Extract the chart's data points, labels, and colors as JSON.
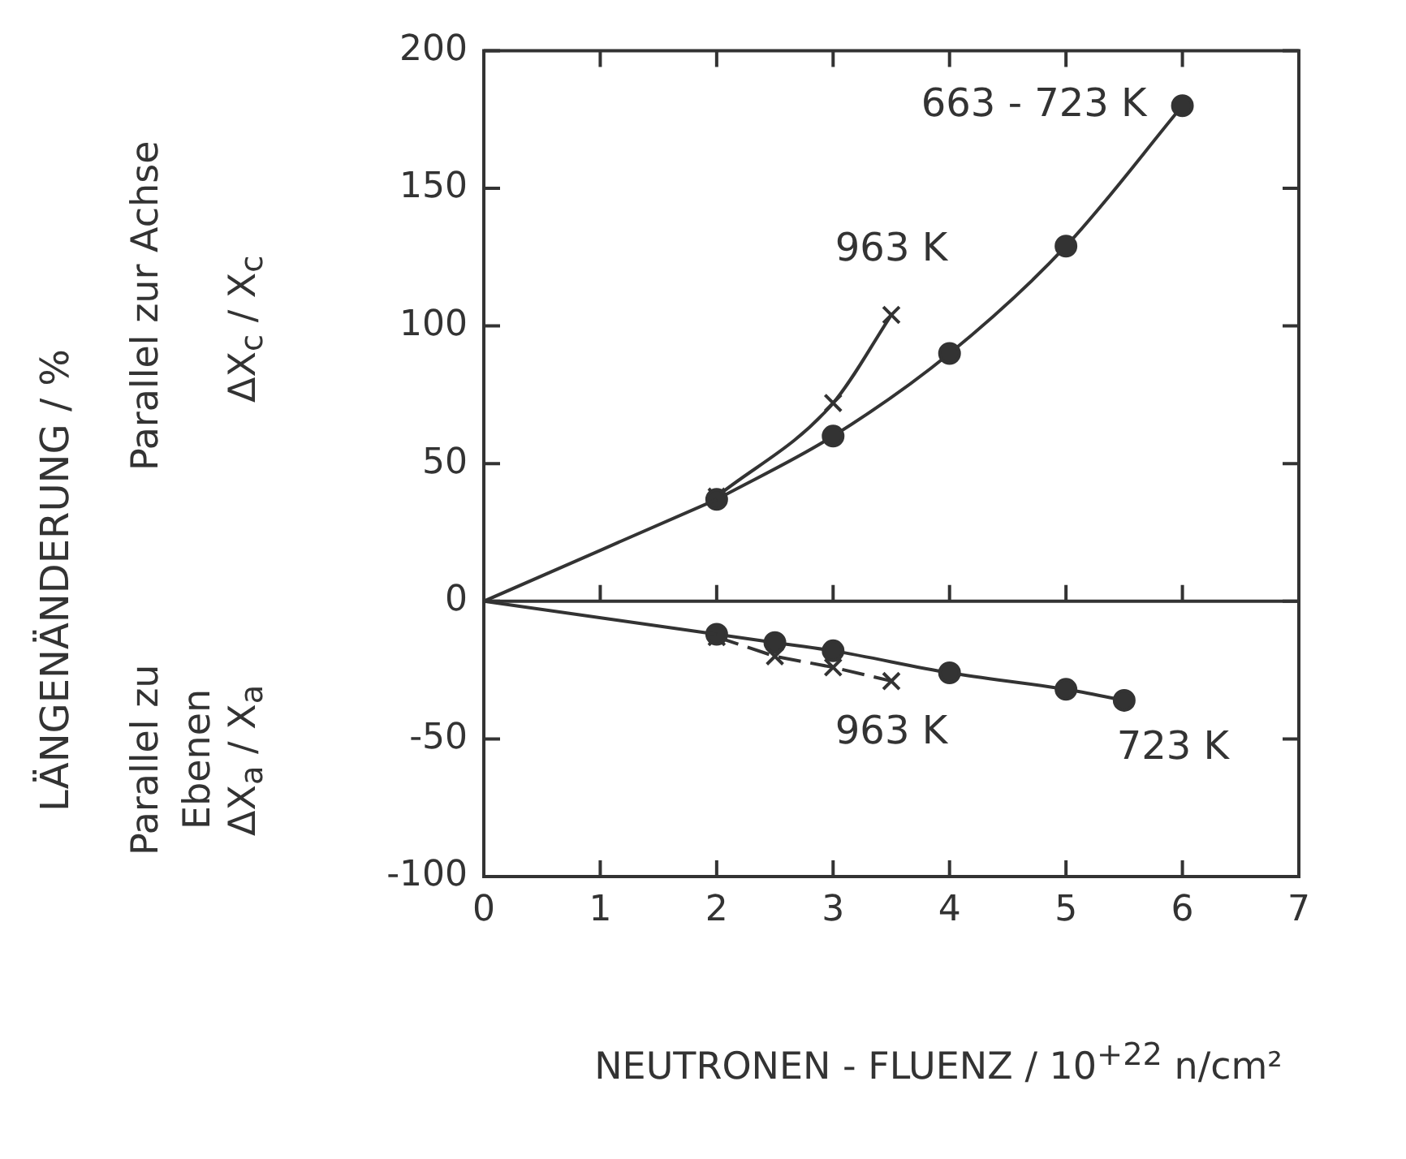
{
  "chart_data": {
    "type": "line",
    "xlabel": "NEUTRONEN - FLUENZ / 10$^{+22}$ n/cm²",
    "xlim": [
      0,
      7
    ],
    "xticks": [
      0,
      1,
      2,
      3,
      4,
      5,
      6,
      7
    ],
    "ylim": [
      -100,
      200
    ],
    "yticks": [
      -100,
      -50,
      0,
      50,
      100,
      150,
      200
    ],
    "grid": false,
    "ref_lines": [
      {
        "axis": "y",
        "value": 0,
        "color": "#333333"
      }
    ],
    "series": [
      {
        "x": [
          0,
          2
        ],
        "values": [
          0,
          37
        ],
        "color": "#333333"
      },
      {
        "name": "663 - 723 K",
        "x": [
          2,
          3,
          4,
          5,
          6
        ],
        "values": [
          37,
          60,
          90,
          129,
          180
        ],
        "color": "#333333",
        "marker": "circle"
      },
      {
        "name": "963 K",
        "x": [
          2,
          3,
          3.5
        ],
        "values": [
          38,
          72,
          104
        ],
        "color": "#333333",
        "marker": "cross"
      },
      {
        "x": [
          0,
          2
        ],
        "values": [
          0,
          -12
        ],
        "color": "#333333"
      },
      {
        "name": "723 K",
        "x": [
          2,
          2.5,
          3,
          4,
          5,
          5.5
        ],
        "values": [
          -12,
          -15,
          -18,
          -26,
          -32,
          -36
        ],
        "color": "#333333",
        "marker": "circle"
      },
      {
        "name": "963 K",
        "x": [
          2,
          2.5,
          3,
          3.5
        ],
        "values": [
          -13,
          -20,
          -24,
          -29
        ],
        "color": "#333333",
        "marker": "cross",
        "line_style": "dashed"
      }
    ],
    "annotations": [
      "LÄNGENÄNDERUNG / %",
      "Parallel zur Achse",
      "ΔX$_{c}$ / X$_{c}$",
      "Parallel zu Ebenen",
      "ΔX$_{a}$ / X$_{a}$"
    ]
  }
}
